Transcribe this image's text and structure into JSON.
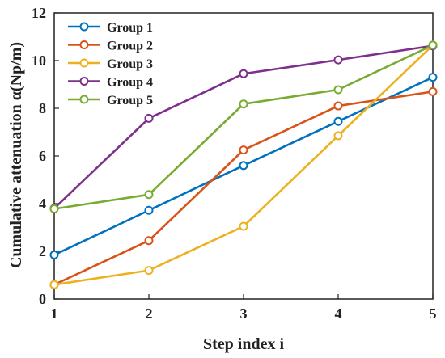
{
  "chart_data": {
    "type": "line",
    "title": "",
    "xlabel": "Step index i",
    "ylabel": "Cumulative attenuation α(Np/m)",
    "x": [
      1,
      2,
      3,
      4,
      5
    ],
    "xlim": [
      1,
      5
    ],
    "ylim": [
      0,
      12
    ],
    "xticks": [
      "1",
      "2",
      "3",
      "4",
      "5"
    ],
    "yticks": [
      "0",
      "2",
      "4",
      "6",
      "8",
      "10",
      "12"
    ],
    "grid": false,
    "legend_position": "top-left",
    "marker": "open-circle",
    "series": [
      {
        "name": "Group 1",
        "color": "#0072BD",
        "values": [
          1.85,
          3.72,
          5.6,
          7.45,
          9.3
        ]
      },
      {
        "name": "Group 2",
        "color": "#D95319",
        "values": [
          0.6,
          2.45,
          6.25,
          8.1,
          8.7
        ]
      },
      {
        "name": "Group 3",
        "color": "#EDB120",
        "values": [
          0.6,
          1.2,
          3.05,
          6.85,
          10.65
        ]
      },
      {
        "name": "Group 4",
        "color": "#7E2F8E",
        "values": [
          3.8,
          7.58,
          9.45,
          10.03,
          10.62
        ]
      },
      {
        "name": "Group 5",
        "color": "#77AC30",
        "values": [
          3.78,
          4.38,
          8.18,
          8.78,
          10.65
        ]
      }
    ]
  }
}
